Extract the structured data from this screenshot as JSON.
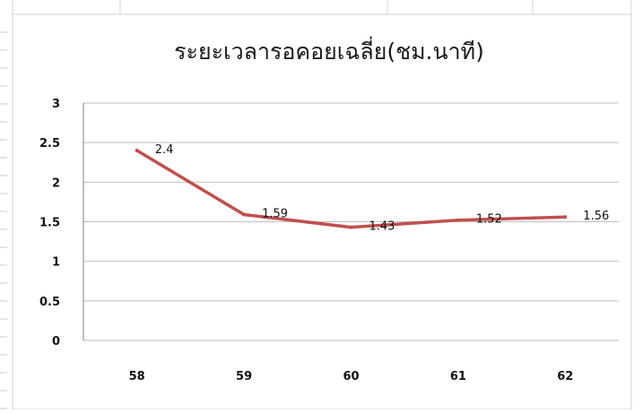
{
  "chart_data": {
    "type": "line",
    "title": "ระยะเวลารอคอยเฉลี่ย(ชม.นาที)",
    "categories": [
      "58",
      "59",
      "60",
      "61",
      "62"
    ],
    "series": [
      {
        "values": [
          2.4,
          1.59,
          1.43,
          1.52,
          1.56
        ],
        "labels": [
          "2.4",
          "1.59",
          "1.43",
          "1.52",
          "1.56"
        ],
        "color": "#c0504d"
      }
    ],
    "ylim": [
      0,
      3
    ],
    "yticks": [
      "0",
      "0.5",
      "1",
      "1.5",
      "2",
      "2.5",
      "3"
    ],
    "grid": true,
    "legend": "none"
  }
}
